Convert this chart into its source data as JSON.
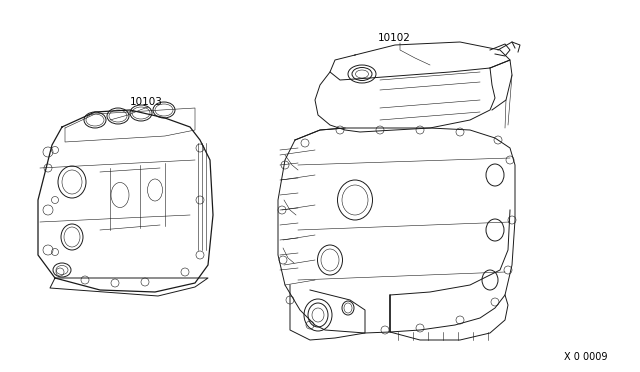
{
  "bg_color": "#ffffff",
  "line_color": "#1a1a1a",
  "label_color": "#000000",
  "part1_label": "10103",
  "part2_label": "10102",
  "diagram_id": "X 0 0009",
  "lw": 0.7,
  "lw_thin": 0.4,
  "lw_thick": 0.9
}
